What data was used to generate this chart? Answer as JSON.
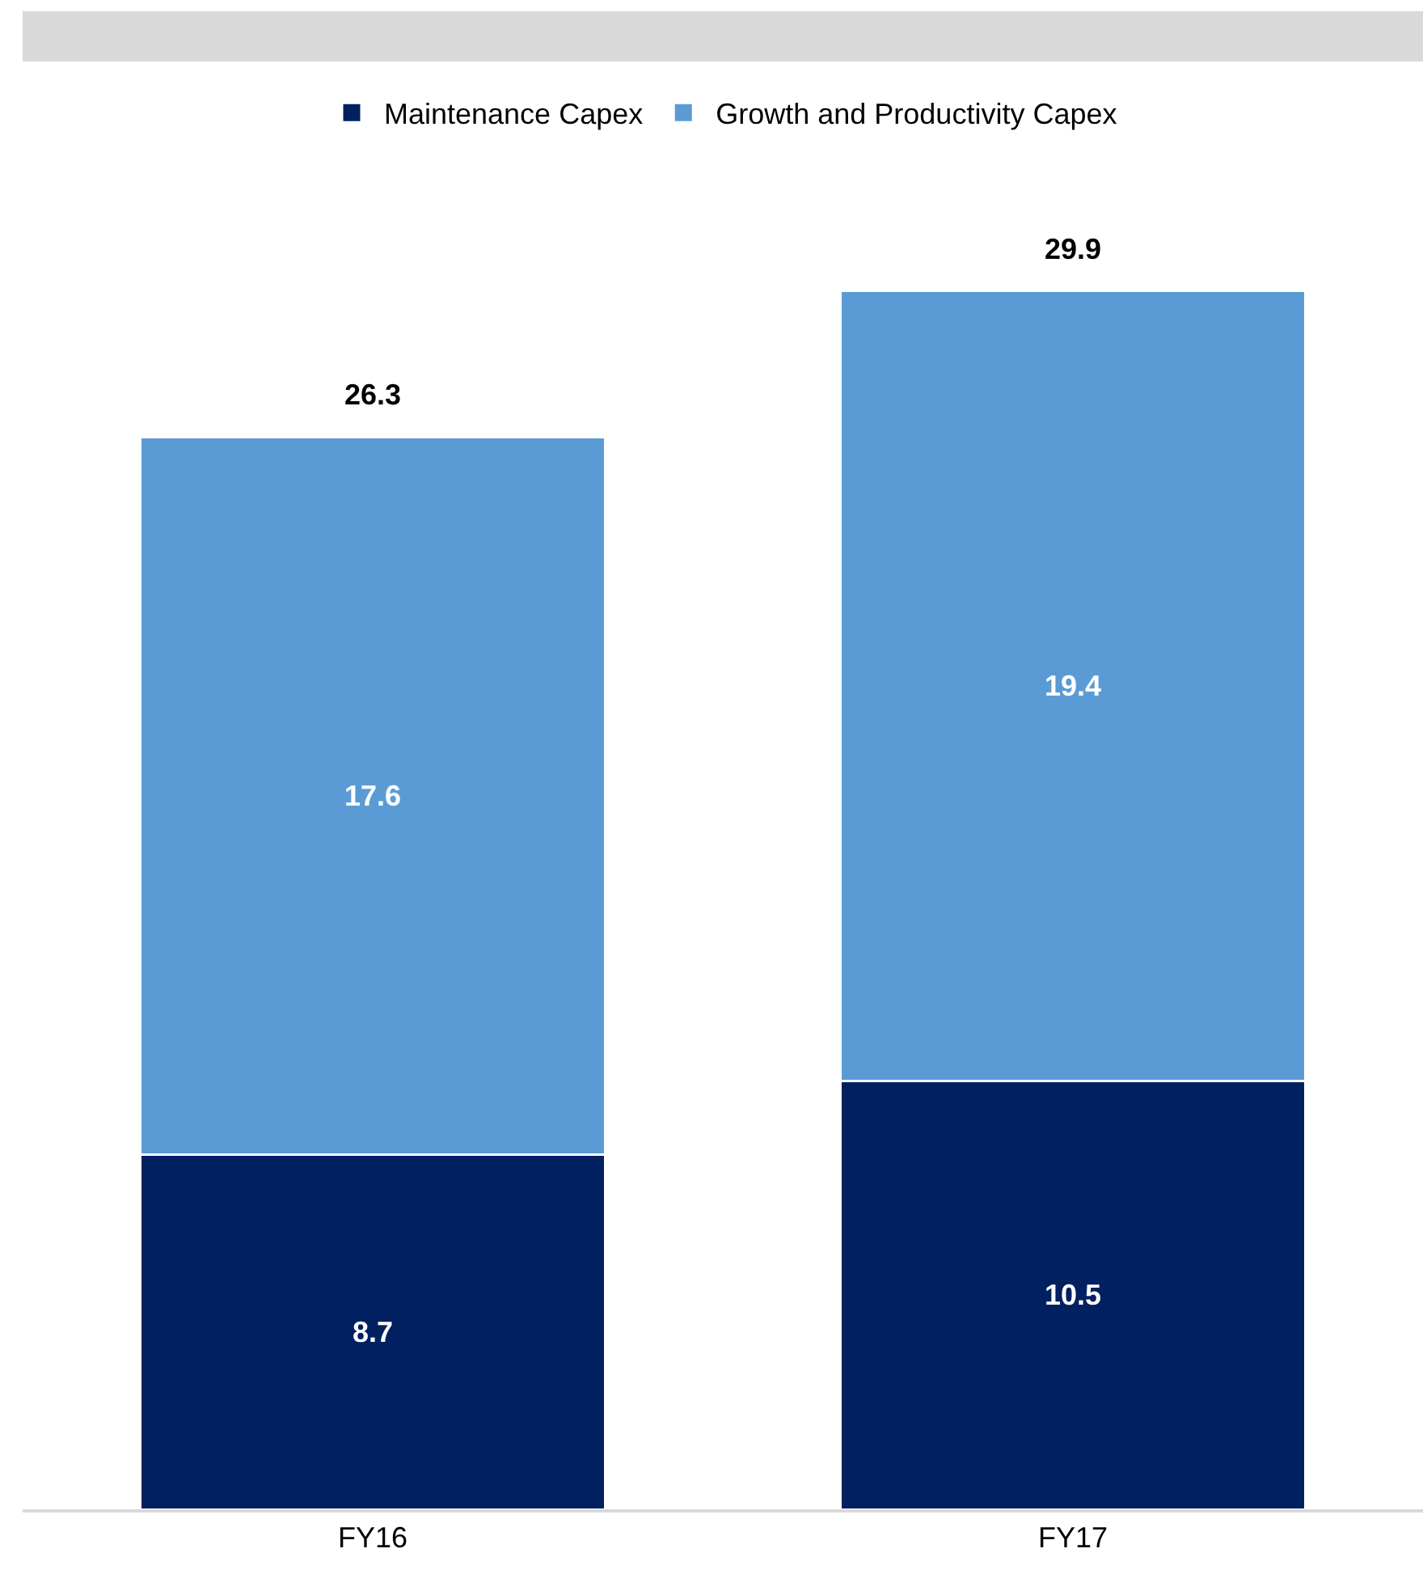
{
  "chart_data": {
    "type": "bar",
    "stacked": true,
    "data_labels": true,
    "legend": "top",
    "categories": [
      "FY16",
      "FY17"
    ],
    "series": [
      {
        "name": "Maintenance Capex",
        "color": "#002060",
        "values": [
          8.7,
          10.5
        ]
      },
      {
        "name": "Growth and Productivity Capex",
        "color": "#5b9bd5",
        "values": [
          17.6,
          19.4
        ]
      }
    ],
    "totals": [
      "26.3",
      "29.9"
    ]
  }
}
